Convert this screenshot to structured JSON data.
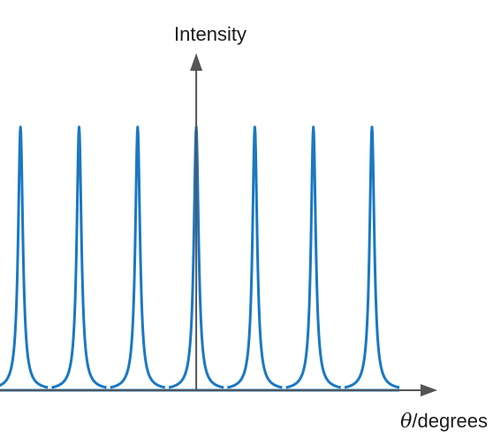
{
  "chart_data": {
    "type": "line",
    "title": "",
    "ylabel": "Intensity",
    "xlabel_symbol": "θ",
    "xlabel_unit": "/degrees",
    "series": [
      {
        "peaks_x": [
          -3,
          -2,
          -1,
          0,
          1,
          2,
          3
        ],
        "peak_heights": [
          1,
          1,
          1,
          1,
          1,
          1,
          1
        ]
      }
    ],
    "xlim": [
      -3.35,
      3.95
    ],
    "ylim": [
      0,
      1.2
    ],
    "grid": false,
    "legend": "none",
    "colors": {
      "line": "#1a78c2",
      "axis": "#555555"
    }
  }
}
